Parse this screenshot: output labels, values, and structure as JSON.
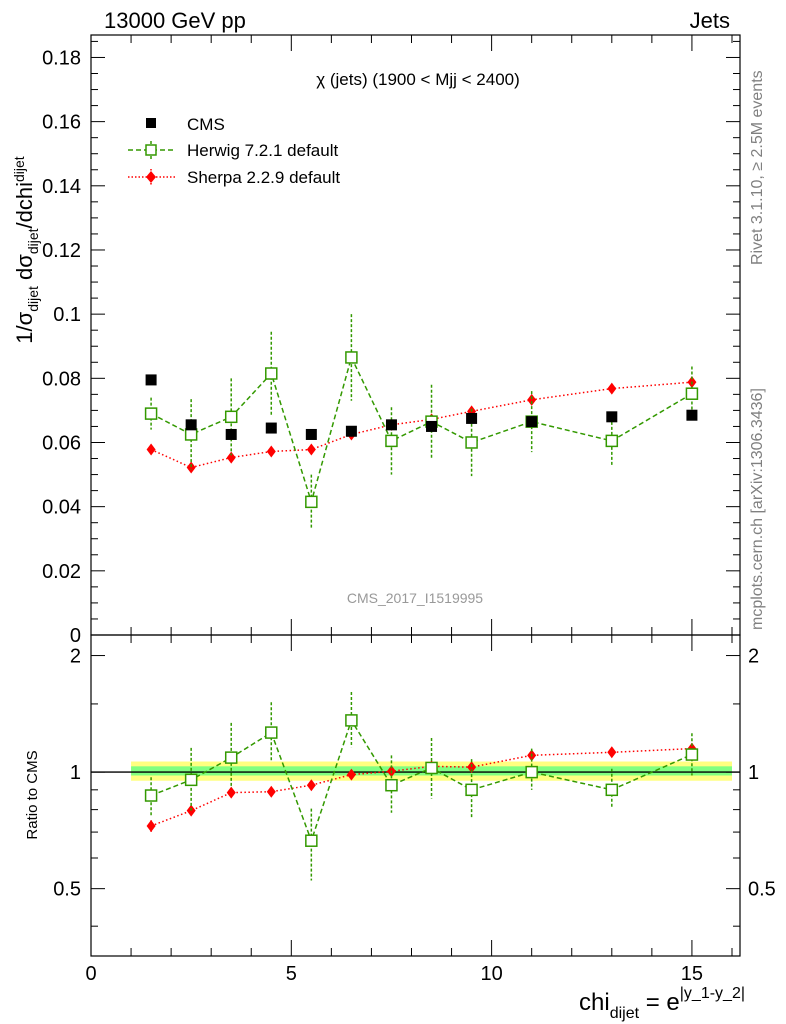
{
  "header": {
    "left": "13000 GeV pp",
    "right": "Jets"
  },
  "side_labels": {
    "rivet": "Rivet 3.1.10, ≥ 2.5M events",
    "mcplots": "mcplots.cern.ch [arXiv:1306.3436]"
  },
  "main_plot": {
    "title": "χ (jets) (1900 < Mjj < 2400)",
    "ylabel_parts": [
      "1/σ",
      "dijet",
      " dσ",
      "dijet",
      "/dchi",
      "dijet"
    ],
    "watermark": "CMS_2017_I1519995",
    "legend": [
      "CMS",
      "Herwig 7.2.1 default",
      "Sherpa 2.2.9 default"
    ]
  },
  "ratio_plot": {
    "ylabel": "Ratio to CMS"
  },
  "xaxis": {
    "label_main": "chi",
    "label_sub": "dijet",
    "label_eq": " = e",
    "label_sup": "|y_1-y_2|"
  },
  "colors": {
    "cms": "#000000",
    "herwig": "#339900",
    "sherpa": "#ff0000",
    "band_outer": "#ffff80",
    "band_inner": "#80ff80"
  },
  "chart_data": [
    {
      "type": "scatter",
      "name": "main",
      "title": "χ (jets) (1900 < Mjj < 2400)",
      "xlim": [
        0,
        16.2
      ],
      "ylim": [
        0,
        0.187
      ],
      "ytick_labels": [
        "0",
        "0.02",
        "0.04",
        "0.06",
        "0.08",
        "0.1",
        "0.12",
        "0.14",
        "0.16",
        "0.18"
      ],
      "ytick_values": [
        0,
        0.02,
        0.04,
        0.06,
        0.08,
        0.1,
        0.12,
        0.14,
        0.16,
        0.18
      ],
      "series": [
        {
          "name": "CMS",
          "x": [
            1.5,
            2.5,
            3.5,
            4.5,
            5.5,
            6.5,
            7.5,
            8.5,
            9.5,
            11.0,
            13.0,
            15.0
          ],
          "values": [
            0.0795,
            0.0655,
            0.0625,
            0.0645,
            0.0625,
            0.0635,
            0.0655,
            0.065,
            0.0675,
            0.0665,
            0.068,
            0.0685
          ],
          "errors": [
            0.0015,
            0.0012,
            0.001,
            0.001,
            0.001,
            0.001,
            0.001,
            0.001,
            0.001,
            0.001,
            0.0012,
            0.0012
          ]
        },
        {
          "name": "Herwig 7.2.1 default",
          "x": [
            1.5,
            2.5,
            3.5,
            4.5,
            5.5,
            6.5,
            7.5,
            8.5,
            9.5,
            11.0,
            13.0,
            15.0
          ],
          "values": [
            0.069,
            0.0625,
            0.068,
            0.0815,
            0.0415,
            0.0865,
            0.0605,
            0.0665,
            0.06,
            0.0665,
            0.0605,
            0.0752
          ],
          "errors": [
            0.005,
            0.011,
            0.012,
            0.013,
            0.0085,
            0.0135,
            0.0105,
            0.0115,
            0.0105,
            0.0095,
            0.0075,
            0.0085
          ]
        },
        {
          "name": "Sherpa 2.2.9 default",
          "x": [
            1.5,
            2.5,
            3.5,
            4.5,
            5.5,
            6.5,
            7.5,
            8.5,
            9.5,
            11.0,
            13.0,
            15.0
          ],
          "values": [
            0.0578,
            0.0522,
            0.0553,
            0.0572,
            0.0578,
            0.0625,
            0.0655,
            0.0672,
            0.0697,
            0.0733,
            0.0768,
            0.0788
          ],
          "errors": [
            0.0015,
            0.0015,
            0.0013,
            0.0013,
            0.0013,
            0.0013,
            0.0013,
            0.0013,
            0.0012,
            0.001,
            0.001,
            0.001
          ]
        }
      ]
    },
    {
      "type": "scatter",
      "name": "ratio",
      "ylabel": "Ratio to CMS",
      "xlim": [
        0,
        16.2
      ],
      "ylim": [
        0.335,
        2.26
      ],
      "ytick_labels": [
        "0.5",
        "1",
        "2"
      ],
      "ytick_values": [
        0.5,
        1,
        2
      ],
      "xtick_labels": [
        "0",
        "5",
        "10",
        "15"
      ],
      "xtick_values": [
        0,
        5,
        10,
        15
      ],
      "band": {
        "xmin": 1.0,
        "xmax": 16.0,
        "outer": [
          0.95,
          1.065
        ],
        "inner": [
          0.98,
          1.035
        ]
      },
      "series": [
        {
          "name": "Herwig 7.2.1 default",
          "x": [
            1.5,
            2.5,
            3.5,
            4.5,
            5.5,
            6.5,
            7.5,
            8.5,
            9.5,
            11.0,
            13.0,
            15.0
          ],
          "values": [
            0.87,
            0.955,
            1.09,
            1.265,
            0.665,
            1.36,
            0.925,
            1.025,
            0.9,
            1.0,
            0.9,
            1.11
          ],
          "errors_up": [
            0.1,
            0.2,
            0.25,
            0.25,
            0.14,
            0.25,
            0.18,
            0.2,
            0.18,
            0.15,
            0.12,
            0.15
          ],
          "errors_down": [
            0.1,
            0.16,
            0.18,
            0.2,
            0.14,
            0.2,
            0.14,
            0.17,
            0.14,
            0.1,
            0.09,
            0.13
          ]
        },
        {
          "name": "Sherpa 2.2.9 default",
          "x": [
            1.5,
            2.5,
            3.5,
            4.5,
            5.5,
            6.5,
            7.5,
            8.5,
            9.5,
            11.0,
            13.0,
            15.0
          ],
          "values": [
            0.726,
            0.795,
            0.885,
            0.89,
            0.925,
            0.985,
            1.005,
            1.035,
            1.03,
            1.105,
            1.125,
            1.15
          ],
          "errors_up": [
            0.025,
            0.025,
            0.022,
            0.022,
            0.022,
            0.022,
            0.02,
            0.02,
            0.02,
            0.018,
            0.018,
            0.018
          ],
          "errors_down": [
            0.025,
            0.025,
            0.022,
            0.022,
            0.022,
            0.022,
            0.02,
            0.02,
            0.02,
            0.018,
            0.018,
            0.018
          ]
        }
      ]
    }
  ]
}
